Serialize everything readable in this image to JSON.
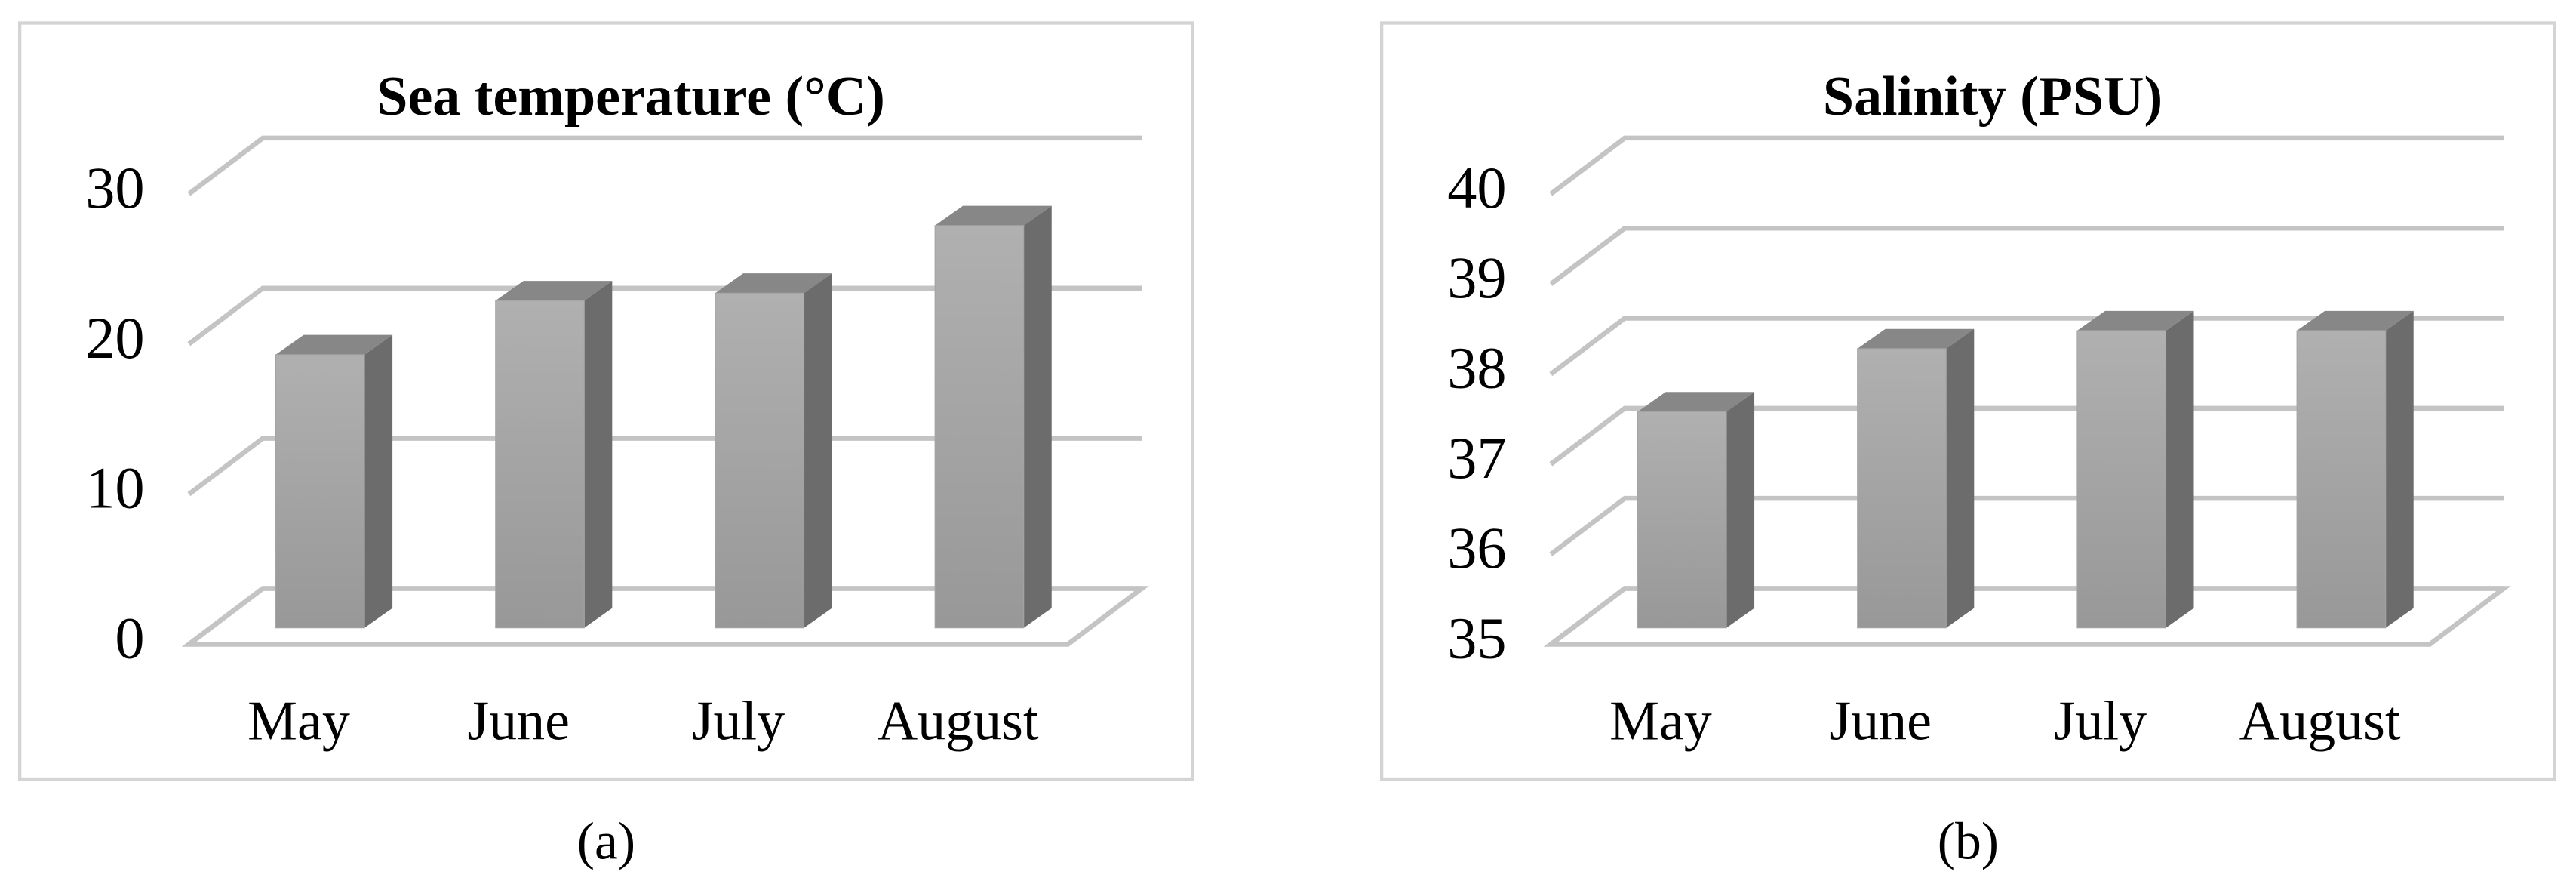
{
  "chart_data": [
    {
      "type": "bar",
      "title": "Sea temperature (°C)",
      "categories": [
        "May",
        "June",
        "July",
        "August"
      ],
      "values": [
        18.2,
        21.8,
        22.3,
        26.8
      ],
      "color": "#a4a4a4",
      "ylim": [
        0,
        30
      ],
      "yticks": [
        0,
        10,
        20,
        30
      ],
      "grid": true
    },
    {
      "type": "bar",
      "title": "Salinity (PSU)",
      "categories": [
        "May",
        "June",
        "July",
        "August"
      ],
      "values": [
        37.4,
        38.1,
        38.3,
        38.3
      ],
      "color": "#a4a4a4",
      "ylim": [
        35,
        40
      ],
      "yticks": [
        35,
        36,
        37,
        38,
        39,
        40
      ],
      "grid": true
    }
  ],
  "captions": [
    "(a)",
    "(b)"
  ]
}
